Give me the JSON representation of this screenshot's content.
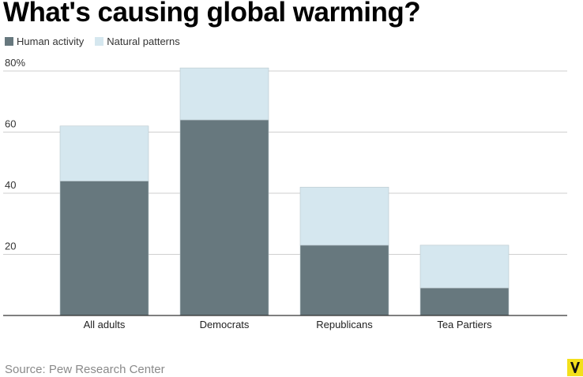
{
  "title": "What's causing global warming?",
  "legend": [
    {
      "label": "Human activity",
      "color": "#67787e"
    },
    {
      "label": "Natural patterns",
      "color": "#d5e7ef"
    }
  ],
  "source": "Source: Pew Research Center",
  "logo": {
    "icon": "vox-logo-icon",
    "color": "#f3e01c"
  },
  "chart_data": {
    "type": "bar",
    "stacked": true,
    "categories": [
      "All adults",
      "Democrats",
      "Republicans",
      "Tea Partiers"
    ],
    "series": [
      {
        "name": "Human activity",
        "values": [
          44,
          64,
          23,
          9
        ],
        "color": "#67787e"
      },
      {
        "name": "Natural patterns",
        "values": [
          18,
          17,
          19,
          14
        ],
        "color": "#d5e7ef"
      }
    ],
    "ylim": [
      0,
      80
    ],
    "yticks": [
      20,
      40,
      60,
      80
    ],
    "ytick_labels": [
      "20",
      "40",
      "60",
      "80%"
    ],
    "grid": true
  }
}
